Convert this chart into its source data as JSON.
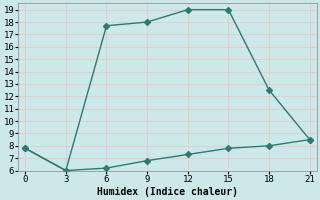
{
  "xlabel": "Humidex (Indice chaleur)",
  "xlim": [
    -0.5,
    21.5
  ],
  "ylim": [
    6,
    19.5
  ],
  "xticks": [
    0,
    3,
    6,
    9,
    12,
    15,
    18,
    21
  ],
  "yticks": [
    6,
    7,
    8,
    9,
    10,
    11,
    12,
    13,
    14,
    15,
    16,
    17,
    18,
    19
  ],
  "line_color": "#2a7d6e",
  "background_color": "#cce8e8",
  "grid_color": "#b0d8d8",
  "line1_x": [
    0,
    3,
    6,
    9,
    12,
    15,
    18,
    21
  ],
  "line1_y": [
    7.8,
    6.0,
    17.7,
    18.0,
    19.0,
    19.0,
    12.5,
    8.5
  ],
  "line2_x": [
    0,
    3,
    6,
    9,
    12,
    15,
    18,
    21
  ],
  "line2_y": [
    7.8,
    6.0,
    6.2,
    6.8,
    7.3,
    7.8,
    8.0,
    8.5
  ],
  "marker_size": 3,
  "linewidth": 1.0,
  "tick_labelsize": 6.5
}
